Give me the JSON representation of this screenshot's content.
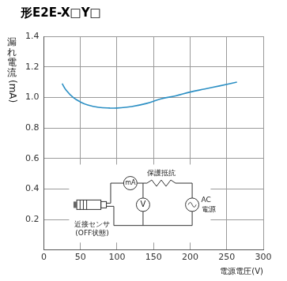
{
  "chart_data": {
    "type": "line",
    "title": "形E2E-X□Y□",
    "x_label": "電源電圧(V)",
    "y_label": "漏れ電流(mA)",
    "x": [
      25,
      30,
      40,
      50,
      60,
      75,
      90,
      100,
      120,
      140,
      160,
      180,
      200,
      220,
      240,
      264
    ],
    "values": [
      1.09,
      1.05,
      1.0,
      0.97,
      0.95,
      0.935,
      0.93,
      0.93,
      0.94,
      0.96,
      0.99,
      1.01,
      1.035,
      1.055,
      1.075,
      1.1
    ],
    "color": "#2b8fc4",
    "xlim": [
      0,
      300
    ],
    "xticks": [
      0,
      50,
      100,
      150,
      200,
      250,
      300
    ],
    "ylim": [
      0,
      1.4
    ],
    "yticks": [
      0.2,
      0.4,
      0.6,
      0.8,
      {
        "value": 1,
        "label": "1.0"
      },
      1.2,
      1.4
    ],
    "grid": true,
    "annotations": {
      "current_meter": "mA",
      "voltage_meter": "V",
      "resistor": "保護抵抗",
      "source": [
        "AC",
        "電源"
      ],
      "sensor": [
        "近接センサ",
        "(OFF状態)"
      ]
    }
  }
}
